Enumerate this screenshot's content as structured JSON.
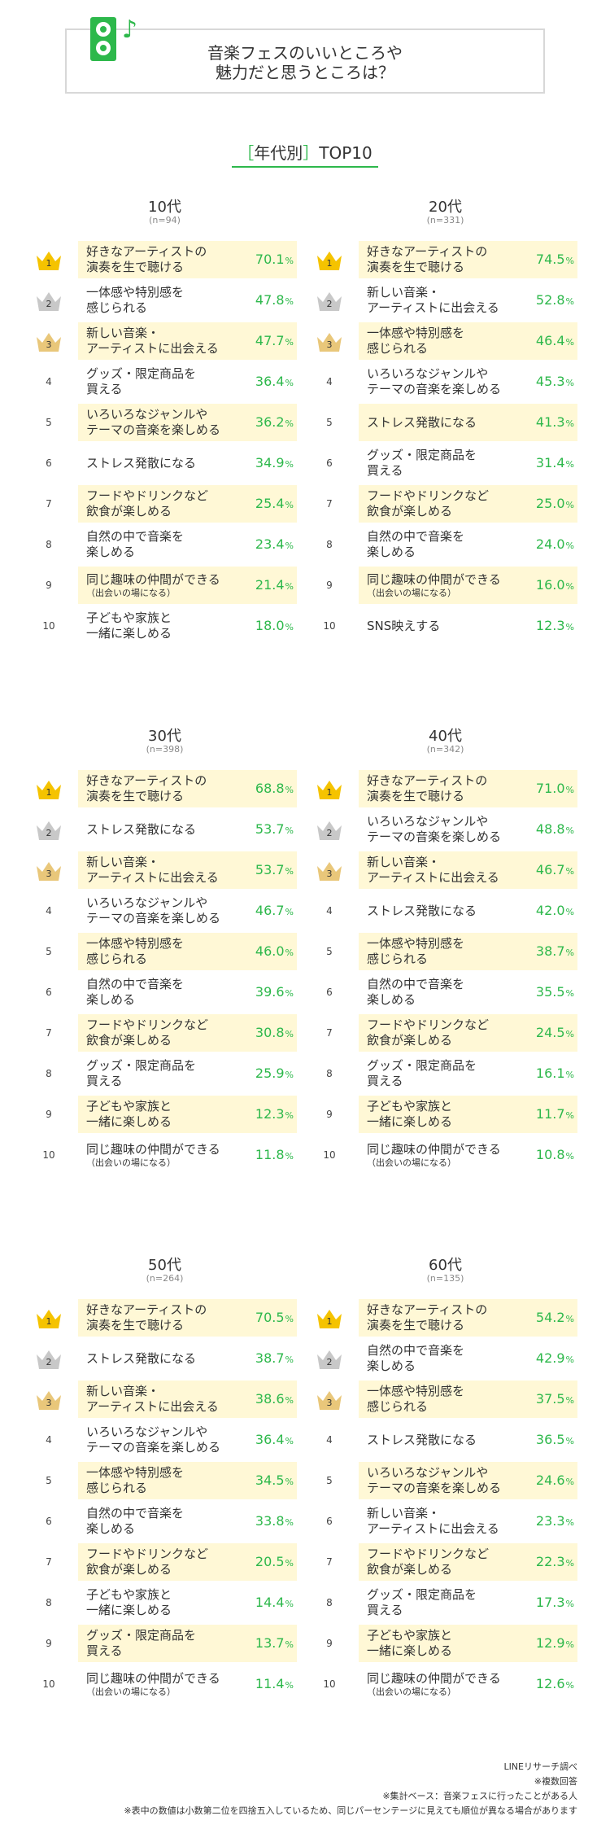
{
  "header": {
    "title": "音楽フェスのいいところや\n魅力だと思うところは？",
    "section_bracket_open": "［",
    "section_label": "年代別",
    "section_bracket_close": "］",
    "section_suffix": "TOP10"
  },
  "chart_data": [
    {
      "type": "table",
      "title": "10代",
      "subtitle": "(n=94)",
      "items": [
        {
          "rank": "1",
          "label": "好きなアーティストの\n演奏を生で聴ける",
          "value": 70.1,
          "value_text": "70.1"
        },
        {
          "rank": "2",
          "label": "一体感や特別感を\n感じられる",
          "value": 47.8,
          "value_text": "47.8"
        },
        {
          "rank": "3",
          "label": "新しい音楽・\nアーティストに出会える",
          "value": 47.7,
          "value_text": "47.7"
        },
        {
          "rank": "4",
          "label": "グッズ・限定商品を\n買える",
          "value": 36.4,
          "value_text": "36.4"
        },
        {
          "rank": "5",
          "label": "いろいろなジャンルや\nテーマの音楽を楽しめる",
          "value": 36.2,
          "value_text": "36.2"
        },
        {
          "rank": "6",
          "label": "ストレス発散になる",
          "value": 34.9,
          "value_text": "34.9"
        },
        {
          "rank": "7",
          "label": "フードやドリンクなど\n飲食が楽しめる",
          "value": 25.4,
          "value_text": "25.4"
        },
        {
          "rank": "8",
          "label": "自然の中で音楽を\n楽しめる",
          "value": 23.4,
          "value_text": "23.4"
        },
        {
          "rank": "9",
          "label": "同じ趣味の仲間ができる",
          "sub": "（出会いの場になる）",
          "value": 21.4,
          "value_text": "21.4"
        },
        {
          "rank": "10",
          "label": "子どもや家族と\n一緒に楽しめる",
          "value": 18.0,
          "value_text": "18.0"
        }
      ]
    },
    {
      "type": "table",
      "title": "20代",
      "subtitle": "(n=331)",
      "items": [
        {
          "rank": "1",
          "label": "好きなアーティストの\n演奏を生で聴ける",
          "value": 74.5,
          "value_text": "74.5"
        },
        {
          "rank": "2",
          "label": "新しい音楽・\nアーティストに出会える",
          "value": 52.8,
          "value_text": "52.8"
        },
        {
          "rank": "3",
          "label": "一体感や特別感を\n感じられる",
          "value": 46.4,
          "value_text": "46.4"
        },
        {
          "rank": "4",
          "label": "いろいろなジャンルや\nテーマの音楽を楽しめる",
          "value": 45.3,
          "value_text": "45.3"
        },
        {
          "rank": "5",
          "label": "ストレス発散になる",
          "value": 41.3,
          "value_text": "41.3"
        },
        {
          "rank": "6",
          "label": "グッズ・限定商品を\n買える",
          "value": 31.4,
          "value_text": "31.4"
        },
        {
          "rank": "7",
          "label": "フードやドリンクなど\n飲食が楽しめる",
          "value": 25.0,
          "value_text": "25.0"
        },
        {
          "rank": "8",
          "label": "自然の中で音楽を\n楽しめる",
          "value": 24.0,
          "value_text": "24.0"
        },
        {
          "rank": "9",
          "label": "同じ趣味の仲間ができる",
          "sub": "（出会いの場になる）",
          "value": 16.0,
          "value_text": "16.0"
        },
        {
          "rank": "10",
          "label": "SNS映えする",
          "value": 12.3,
          "value_text": "12.3"
        }
      ]
    },
    {
      "type": "table",
      "title": "30代",
      "subtitle": "(n=398)",
      "items": [
        {
          "rank": "1",
          "label": "好きなアーティストの\n演奏を生で聴ける",
          "value": 68.8,
          "value_text": "68.8"
        },
        {
          "rank": "2",
          "label": "ストレス発散になる",
          "value": 53.7,
          "value_text": "53.7"
        },
        {
          "rank": "3",
          "label": "新しい音楽・\nアーティストに出会える",
          "value": 53.7,
          "value_text": "53.7"
        },
        {
          "rank": "4",
          "label": "いろいろなジャンルや\nテーマの音楽を楽しめる",
          "value": 46.7,
          "value_text": "46.7"
        },
        {
          "rank": "5",
          "label": "一体感や特別感を\n感じられる",
          "value": 46.0,
          "value_text": "46.0"
        },
        {
          "rank": "6",
          "label": "自然の中で音楽を\n楽しめる",
          "value": 39.6,
          "value_text": "39.6"
        },
        {
          "rank": "7",
          "label": "フードやドリンクなど\n飲食が楽しめる",
          "value": 30.8,
          "value_text": "30.8"
        },
        {
          "rank": "8",
          "label": "グッズ・限定商品を\n買える",
          "value": 25.9,
          "value_text": "25.9"
        },
        {
          "rank": "9",
          "label": "子どもや家族と\n一緒に楽しめる",
          "value": 12.3,
          "value_text": "12.3"
        },
        {
          "rank": "10",
          "label": "同じ趣味の仲間ができる",
          "sub": "（出会いの場になる）",
          "value": 11.8,
          "value_text": "11.8"
        }
      ]
    },
    {
      "type": "table",
      "title": "40代",
      "subtitle": "(n=342)",
      "items": [
        {
          "rank": "1",
          "label": "好きなアーティストの\n演奏を生で聴ける",
          "value": 71.0,
          "value_text": "71.0"
        },
        {
          "rank": "2",
          "label": "いろいろなジャンルや\nテーマの音楽を楽しめる",
          "value": 48.8,
          "value_text": "48.8"
        },
        {
          "rank": "3",
          "label": "新しい音楽・\nアーティストに出会える",
          "value": 46.7,
          "value_text": "46.7"
        },
        {
          "rank": "4",
          "label": "ストレス発散になる",
          "value": 42.0,
          "value_text": "42.0"
        },
        {
          "rank": "5",
          "label": "一体感や特別感を\n感じられる",
          "value": 38.7,
          "value_text": "38.7"
        },
        {
          "rank": "6",
          "label": "自然の中で音楽を\n楽しめる",
          "value": 35.5,
          "value_text": "35.5"
        },
        {
          "rank": "7",
          "label": "フードやドリンクなど\n飲食が楽しめる",
          "value": 24.5,
          "value_text": "24.5"
        },
        {
          "rank": "8",
          "label": "グッズ・限定商品を\n買える",
          "value": 16.1,
          "value_text": "16.1"
        },
        {
          "rank": "9",
          "label": "子どもや家族と\n一緒に楽しめる",
          "value": 11.7,
          "value_text": "11.7"
        },
        {
          "rank": "10",
          "label": "同じ趣味の仲間ができる",
          "sub": "（出会いの場になる）",
          "value": 10.8,
          "value_text": "10.8"
        }
      ]
    },
    {
      "type": "table",
      "title": "50代",
      "subtitle": "(n=264)",
      "items": [
        {
          "rank": "1",
          "label": "好きなアーティストの\n演奏を生で聴ける",
          "value": 70.5,
          "value_text": "70.5"
        },
        {
          "rank": "2",
          "label": "ストレス発散になる",
          "value": 38.7,
          "value_text": "38.7"
        },
        {
          "rank": "3",
          "label": "新しい音楽・\nアーティストに出会える",
          "value": 38.6,
          "value_text": "38.6"
        },
        {
          "rank": "4",
          "label": "いろいろなジャンルや\nテーマの音楽を楽しめる",
          "value": 36.4,
          "value_text": "36.4"
        },
        {
          "rank": "5",
          "label": "一体感や特別感を\n感じられる",
          "value": 34.5,
          "value_text": "34.5"
        },
        {
          "rank": "6",
          "label": "自然の中で音楽を\n楽しめる",
          "value": 33.8,
          "value_text": "33.8"
        },
        {
          "rank": "7",
          "label": "フードやドリンクなど\n飲食が楽しめる",
          "value": 20.5,
          "value_text": "20.5"
        },
        {
          "rank": "8",
          "label": "子どもや家族と\n一緒に楽しめる",
          "value": 14.4,
          "value_text": "14.4"
        },
        {
          "rank": "9",
          "label": "グッズ・限定商品を\n買える",
          "value": 13.7,
          "value_text": "13.7"
        },
        {
          "rank": "10",
          "label": "同じ趣味の仲間ができる",
          "sub": "（出会いの場になる）",
          "value": 11.4,
          "value_text": "11.4"
        }
      ]
    },
    {
      "type": "table",
      "title": "60代",
      "subtitle": "(n=135)",
      "items": [
        {
          "rank": "1",
          "label": "好きなアーティストの\n演奏を生で聴ける",
          "value": 54.2,
          "value_text": "54.2"
        },
        {
          "rank": "2",
          "label": "自然の中で音楽を\n楽しめる",
          "value": 42.9,
          "value_text": "42.9"
        },
        {
          "rank": "3",
          "label": "一体感や特別感を\n感じられる",
          "value": 37.5,
          "value_text": "37.5"
        },
        {
          "rank": "4",
          "label": "ストレス発散になる",
          "value": 36.5,
          "value_text": "36.5"
        },
        {
          "rank": "5",
          "label": "いろいろなジャンルや\nテーマの音楽を楽しめる",
          "value": 24.6,
          "value_text": "24.6"
        },
        {
          "rank": "6",
          "label": "新しい音楽・\nアーティストに出会える",
          "value": 23.3,
          "value_text": "23.3"
        },
        {
          "rank": "7",
          "label": "フードやドリンクなど\n飲食が楽しめる",
          "value": 22.3,
          "value_text": "22.3"
        },
        {
          "rank": "8",
          "label": "グッズ・限定商品を\n買える",
          "value": 17.3,
          "value_text": "17.3"
        },
        {
          "rank": "9",
          "label": "子どもや家族と\n一緒に楽しめる",
          "value": 12.9,
          "value_text": "12.9"
        },
        {
          "rank": "10",
          "label": "同じ趣味の仲間ができる",
          "sub": "（出会いの場になる）",
          "value": 12.6,
          "value_text": "12.6"
        }
      ]
    }
  ],
  "percent_symbol": "%",
  "footnotes": [
    "LINEリサーチ調べ",
    "※複数回答",
    "※集計ベース：音楽フェスに行ったことがある人",
    "※表中の数値は小数第二位を四捨五入しているため、同じパーセンテージに見えても順位が異なる場合があります"
  ],
  "colors": {
    "accent": "#2db84b",
    "highlight_bg": "#fff8d6",
    "gold": "#f5c300",
    "silver": "#c8c8c8",
    "bronze": "#e9c77a"
  },
  "icons": [
    "speaker-icon",
    "music-note-icon",
    "crown-icon"
  ]
}
